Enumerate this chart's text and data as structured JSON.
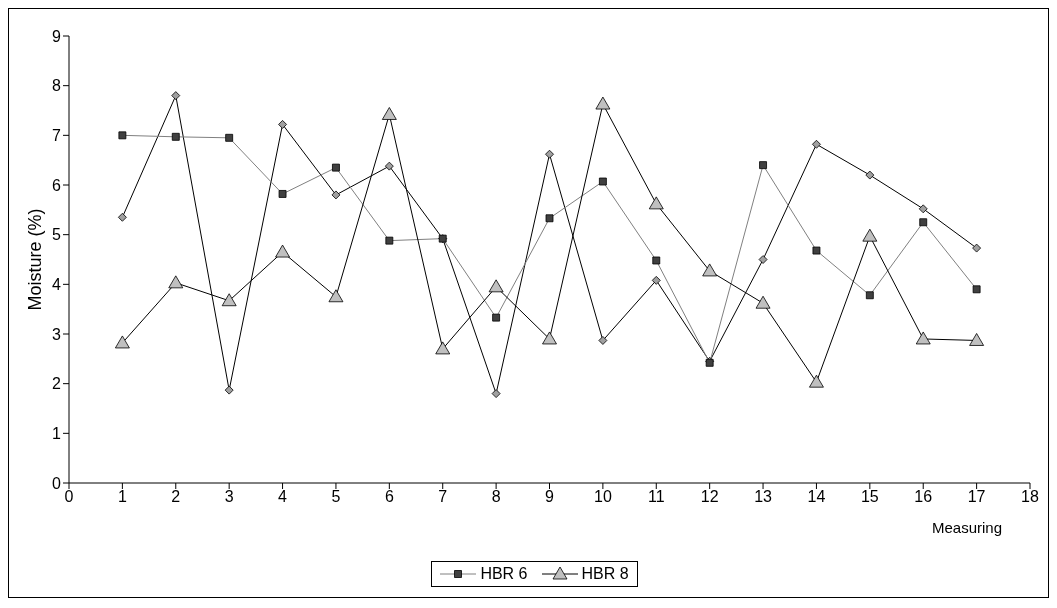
{
  "chart_data": {
    "type": "line",
    "xlabel": "Measuring",
    "ylabel": "Moisture (%)",
    "x": [
      1,
      2,
      3,
      4,
      5,
      6,
      7,
      8,
      9,
      10,
      11,
      12,
      13,
      14,
      15,
      16,
      17
    ],
    "xlim": [
      0,
      18
    ],
    "xticks": [
      0,
      1,
      2,
      3,
      4,
      5,
      6,
      7,
      8,
      9,
      10,
      11,
      12,
      13,
      14,
      15,
      16,
      17,
      18
    ],
    "ylim": [
      0,
      9
    ],
    "yticks": [
      0,
      1,
      2,
      3,
      4,
      5,
      6,
      7,
      8,
      9
    ],
    "grid": false,
    "legend": "bottom",
    "series": [
      {
        "color": "#000000",
        "marker": "diamond",
        "values": [
          5.35,
          7.8,
          1.87,
          7.22,
          5.8,
          6.38,
          4.92,
          1.8,
          6.62,
          2.87,
          4.08,
          2.45,
          4.5,
          6.82,
          6.2,
          5.52,
          4.73
        ]
      },
      {
        "name": "HBR 6",
        "color": "#808080",
        "marker": "square",
        "values": [
          7.0,
          6.97,
          6.95,
          5.82,
          6.35,
          4.88,
          4.92,
          3.33,
          5.33,
          6.07,
          4.48,
          2.42,
          6.4,
          4.68,
          3.78,
          5.25,
          3.9
        ]
      },
      {
        "name": "HBR 8",
        "color": "#000000",
        "marker": "triangle",
        "values": [
          2.82,
          4.03,
          3.67,
          4.65,
          3.75,
          7.42,
          2.7,
          3.95,
          2.9,
          7.63,
          5.62,
          4.27,
          3.62,
          2.03,
          4.97,
          2.9,
          2.87
        ]
      }
    ]
  }
}
